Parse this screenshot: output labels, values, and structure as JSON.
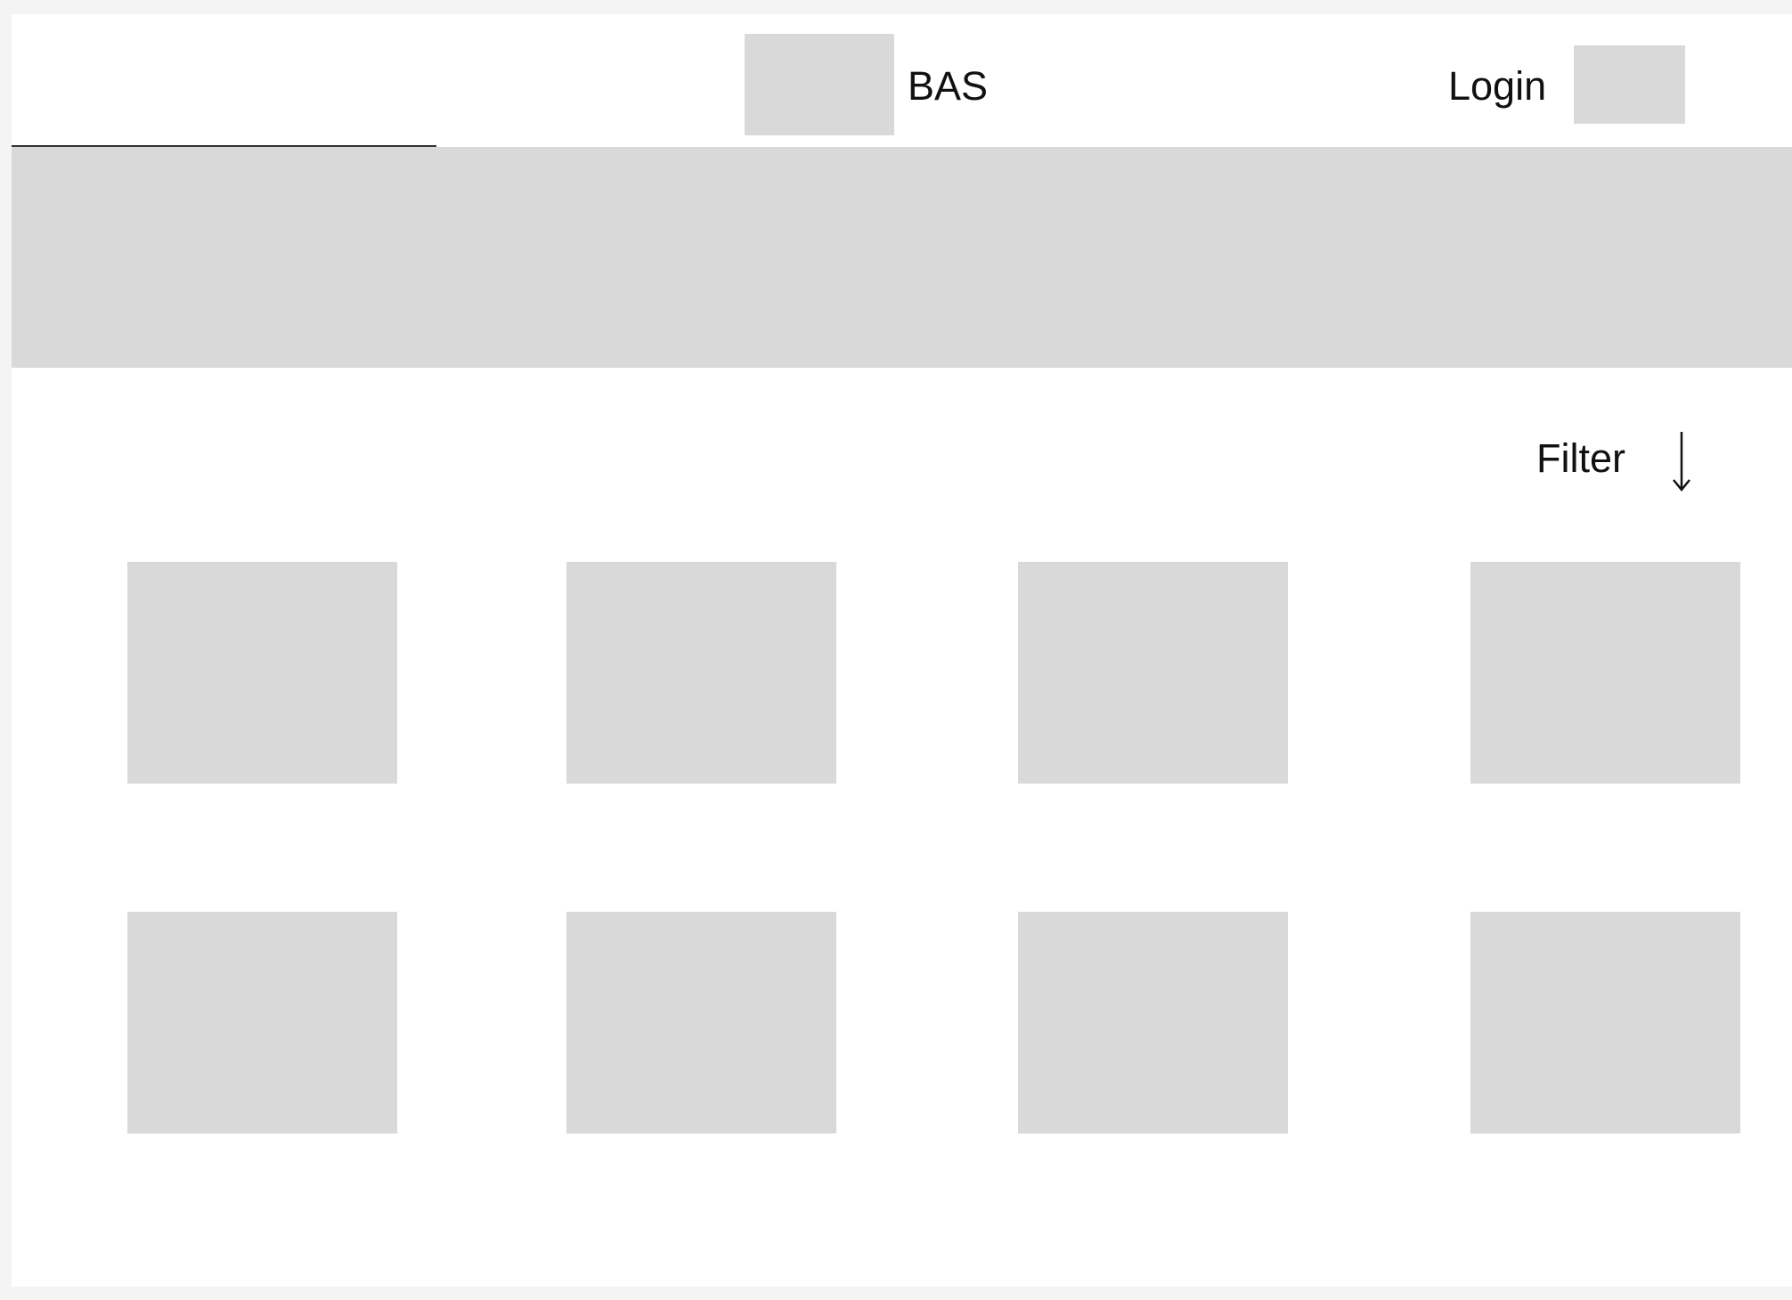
{
  "header": {
    "brand_label": "BAS",
    "login_label": "Login"
  },
  "filter": {
    "label": "Filter",
    "icon": "arrow-down-icon"
  },
  "grid": {
    "rows": 2,
    "columns": 4,
    "items": [
      {
        "label": ""
      },
      {
        "label": ""
      },
      {
        "label": ""
      },
      {
        "label": ""
      },
      {
        "label": ""
      },
      {
        "label": ""
      },
      {
        "label": ""
      },
      {
        "label": ""
      }
    ]
  },
  "colors": {
    "background": "#f4f4f4",
    "frame": "#ffffff",
    "placeholder": "#d9d9d9",
    "text": "#111111"
  }
}
